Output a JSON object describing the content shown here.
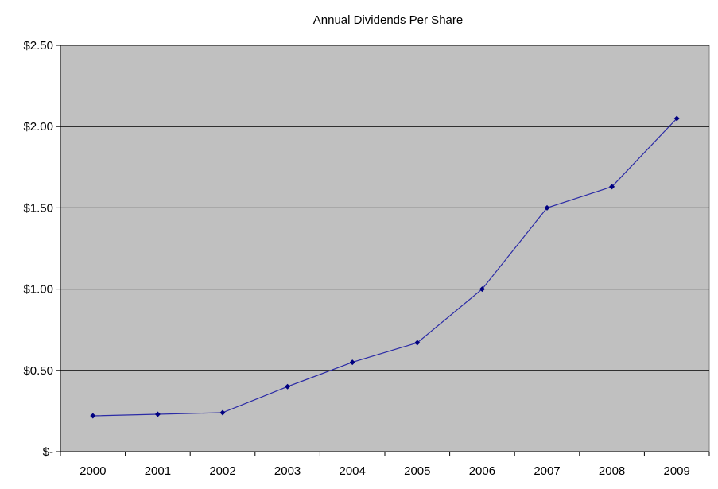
{
  "chart_data": {
    "type": "line",
    "title": "Annual Dividends Per Share",
    "xlabel": "",
    "ylabel": "",
    "categories": [
      "2000",
      "2001",
      "2002",
      "2003",
      "2004",
      "2005",
      "2006",
      "2007",
      "2008",
      "2009"
    ],
    "series": [
      {
        "values": [
          0.22,
          0.23,
          0.24,
          0.4,
          0.55,
          0.67,
          1.0,
          1.5,
          1.63,
          2.05
        ]
      }
    ],
    "ylim": [
      0,
      2.5
    ],
    "yticks": [
      {
        "value": 0,
        "label": "$-"
      },
      {
        "value": 0.5,
        "label": "$0.50"
      },
      {
        "value": 1.0,
        "label": "$1.00"
      },
      {
        "value": 1.5,
        "label": "$1.50"
      },
      {
        "value": 2.0,
        "label": "$2.00"
      },
      {
        "value": 2.5,
        "label": "$2.50"
      }
    ],
    "grid": true,
    "legend": "none",
    "colors": {
      "plot_background": "#c0c0c0",
      "series_line": "#2b2ba6",
      "series_marker": "#000080",
      "gridline": "#000000"
    }
  }
}
